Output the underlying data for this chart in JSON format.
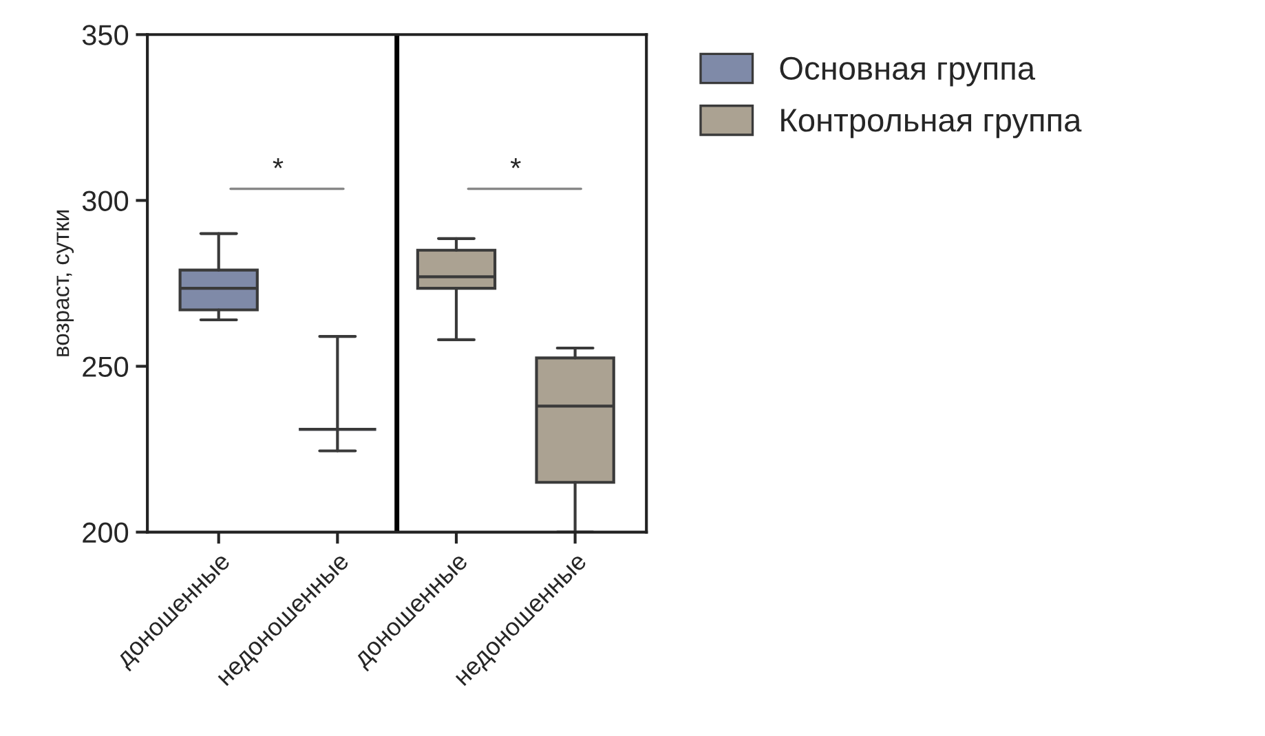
{
  "chart_data": {
    "type": "box",
    "ylabel": "возраст, сутки",
    "categories": [
      "доношенные",
      "недоношенные",
      "доношенные",
      "недоношенные"
    ],
    "series": [
      {
        "name": "Основная группа",
        "color": "#7f8aa8",
        "boxes": [
          {
            "low": 264,
            "q1": 267,
            "median": 273.5,
            "q3": 279,
            "high": 290
          },
          {
            "low": 224.5,
            "q1": 231,
            "median": 231,
            "q3": 231,
            "high": 259
          },
          null,
          null
        ]
      },
      {
        "name": "Контрольная группа",
        "color": "#aba292",
        "boxes": [
          null,
          null,
          {
            "low": 258,
            "q1": 273.5,
            "median": 277,
            "q3": 285,
            "high": 288.5
          },
          {
            "low": 200,
            "q1": 215,
            "median": 238,
            "q3": 252.5,
            "high": 255.5
          }
        ]
      }
    ],
    "ylim": [
      200,
      350
    ],
    "yticks": [
      200,
      250,
      300,
      350
    ],
    "annotations": [
      "*",
      "*"
    ],
    "grid": false,
    "legend": "right"
  }
}
